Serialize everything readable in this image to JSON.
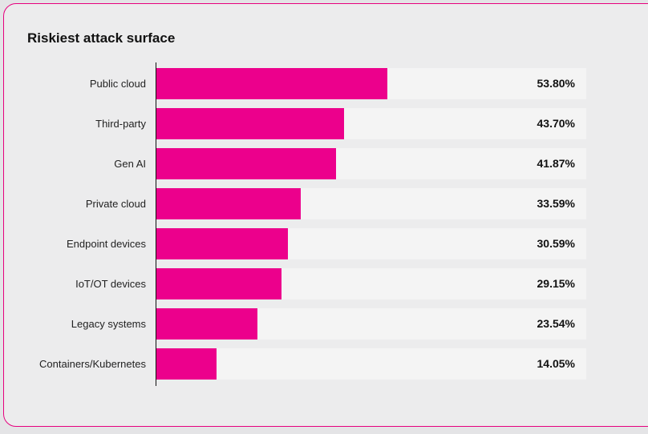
{
  "chart_data": {
    "type": "bar",
    "orientation": "horizontal",
    "title": "Riskiest attack surface",
    "categories": [
      "Public cloud",
      "Third-party",
      "Gen AI",
      "Private cloud",
      "Endpoint devices",
      "IoT/OT devices",
      "Legacy systems",
      "Containers/Kubernetes"
    ],
    "values": [
      53.8,
      43.7,
      41.87,
      33.59,
      30.59,
      29.15,
      23.54,
      14.05
    ],
    "value_labels": [
      "53.80%",
      "43.70%",
      "41.87%",
      "33.59%",
      "30.59%",
      "29.15%",
      "23.54%",
      "14.05%"
    ],
    "xlim": [
      0,
      100
    ],
    "grid": false,
    "bar_color": "#ec008c",
    "track_color": "#f4f4f4"
  }
}
